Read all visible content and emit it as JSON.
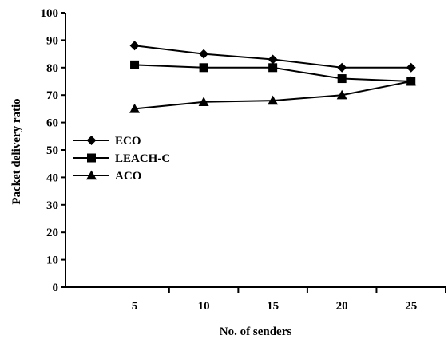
{
  "chart_data": {
    "type": "line",
    "title": "",
    "xlabel": "No. of senders",
    "ylabel": "Packet delivery ratio",
    "x": [
      5,
      10,
      15,
      20,
      25
    ],
    "xlim": [
      0,
      27.5
    ],
    "ylim": [
      0,
      100
    ],
    "yticks": [
      0,
      10,
      20,
      30,
      40,
      50,
      60,
      70,
      80,
      90,
      100
    ],
    "grid": false,
    "legend_position": "left",
    "series": [
      {
        "name": "ECO",
        "marker": "diamond",
        "values": [
          88,
          85,
          83,
          80,
          80
        ]
      },
      {
        "name": "LEACH-C",
        "marker": "square",
        "values": [
          81,
          80,
          80,
          76,
          75
        ]
      },
      {
        "name": "ACO",
        "marker": "triangle",
        "values": [
          65,
          67.5,
          68,
          70,
          75
        ]
      }
    ]
  }
}
